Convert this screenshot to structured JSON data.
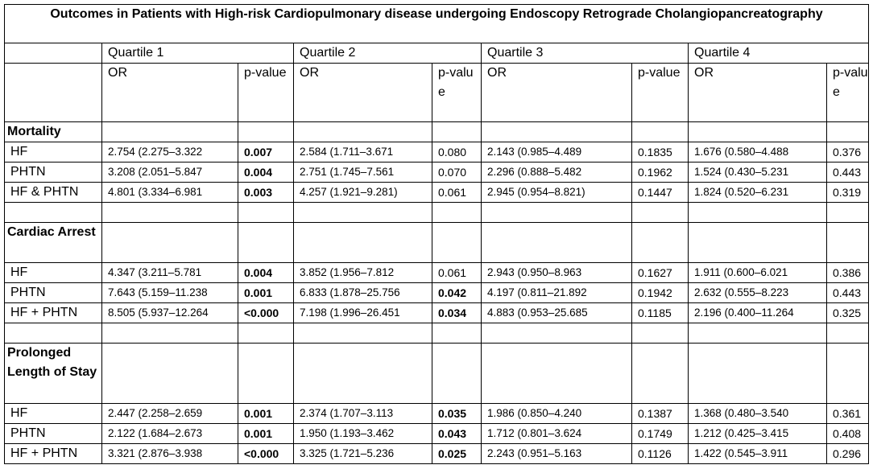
{
  "title": "Outcomes in Patients with High-risk Cardiopulmonary disease undergoing Endoscopy Retrograde Cholangiopancreatography",
  "quartiles": [
    "Quartile 1",
    "Quartile 2",
    "Quartile 3",
    "Quartile 4"
  ],
  "subheaders": {
    "or": "OR",
    "pvalue_a": "p-value",
    "pvalue_b": "p-valu e"
  },
  "sections": [
    {
      "name": "Mortality",
      "rows": [
        {
          "label": "HF",
          "cells": [
            {
              "or": "2.754 (2.275–3.322",
              "p": "0.007",
              "bold": true
            },
            {
              "or": "2.584 (1.711–3.671",
              "p": "0.080",
              "bold": false
            },
            {
              "or": "2.143 (0.985–4.489",
              "p": "0.1835",
              "bold": false
            },
            {
              "or": "1.676 (0.580–4.488",
              "p": "0.376",
              "bold": false
            }
          ]
        },
        {
          "label": "PHTN",
          "cells": [
            {
              "or": "3.208 (2.051–5.847",
              "p": "0.004",
              "bold": true
            },
            {
              "or": "2.751 (1.745–7.561",
              "p": "0.070",
              "bold": false
            },
            {
              "or": "2.296 (0.888–5.482",
              "p": "0.1962",
              "bold": false
            },
            {
              "or": "1.524 (0.430–5.231",
              "p": "0.443",
              "bold": false
            }
          ]
        },
        {
          "label": "HF & PHTN",
          "cells": [
            {
              "or": "4.801 (3.334–6.981",
              "p": "0.003",
              "bold": true
            },
            {
              "or": "4.257 (1.921–9.281)",
              "p": "0.061",
              "bold": false
            },
            {
              "or": "2.945 (0.954–8.821)",
              "p": "0.1447",
              "bold": false
            },
            {
              "or": "1.824 (0.520–6.231",
              "p": "0.319",
              "bold": false
            }
          ]
        }
      ]
    },
    {
      "name": "Cardiac Arrest",
      "rows": [
        {
          "label": "HF",
          "cells": [
            {
              "or": "4.347 (3.211–5.781",
              "p": "0.004",
              "bold": true
            },
            {
              "or": "3.852 (1.956–7.812",
              "p": "0.061",
              "bold": false
            },
            {
              "or": "2.943 (0.950–8.963",
              "p": "0.1627",
              "bold": false
            },
            {
              "or": "1.911 (0.600–6.021",
              "p": "0.386",
              "bold": false
            }
          ]
        },
        {
          "label": "PHTN",
          "cells": [
            {
              "or": "7.643 (5.159–11.238",
              "p": "0.001",
              "bold": true
            },
            {
              "or": "6.833 (1.878–25.756",
              "p": "0.042",
              "bold": true
            },
            {
              "or": "4.197 (0.811–21.892",
              "p": "0.1942",
              "bold": false
            },
            {
              "or": "2.632 (0.555–8.223",
              "p": "0.443",
              "bold": false
            }
          ]
        },
        {
          "label": "HF + PHTN",
          "cells": [
            {
              "or": "8.505 (5.937–12.264",
              "p": "<0.000",
              "bold": true
            },
            {
              "or": "7.198 (1.996–26.451",
              "p": "0.034",
              "bold": true
            },
            {
              "or": "4.883 (0.953–25.685",
              "p": "0.1185",
              "bold": false
            },
            {
              "or": "2.196 (0.400–11.264",
              "p": "0.325",
              "bold": false
            }
          ]
        }
      ]
    },
    {
      "name": "Prolonged Length of Stay",
      "rows": [
        {
          "label": "HF",
          "cells": [
            {
              "or": "2.447 (2.258–2.659",
              "p": "0.001",
              "bold": true
            },
            {
              "or": "2.374 (1.707–3.113",
              "p": "0.035",
              "bold": true
            },
            {
              "or": "1.986 (0.850–4.240",
              "p": "0.1387",
              "bold": false
            },
            {
              "or": "1.368 (0.480–3.540",
              "p": "0.361",
              "bold": false
            }
          ]
        },
        {
          "label": "PHTN",
          "cells": [
            {
              "or": "2.122 (1.684–2.673",
              "p": "0.001",
              "bold": true
            },
            {
              "or": "1.950 (1.193–3.462",
              "p": "0.043",
              "bold": true
            },
            {
              "or": "1.712 (0.801–3.624",
              "p": "0.1749",
              "bold": false
            },
            {
              "or": "1.212 (0.425–3.415",
              "p": "0.408",
              "bold": false
            }
          ]
        },
        {
          "label": "HF + PHTN",
          "cells": [
            {
              "or": "3.321 (2.876–3.938",
              "p": "<0.000",
              "bold": true
            },
            {
              "or": "3.325 (1.721–5.236",
              "p": "0.025",
              "bold": true
            },
            {
              "or": "2.243 (0.951–5.163",
              "p": "0.1126",
              "bold": false
            },
            {
              "or": "1.422 (0.545–3.911",
              "p": "0.296",
              "bold": false
            }
          ]
        }
      ]
    }
  ]
}
